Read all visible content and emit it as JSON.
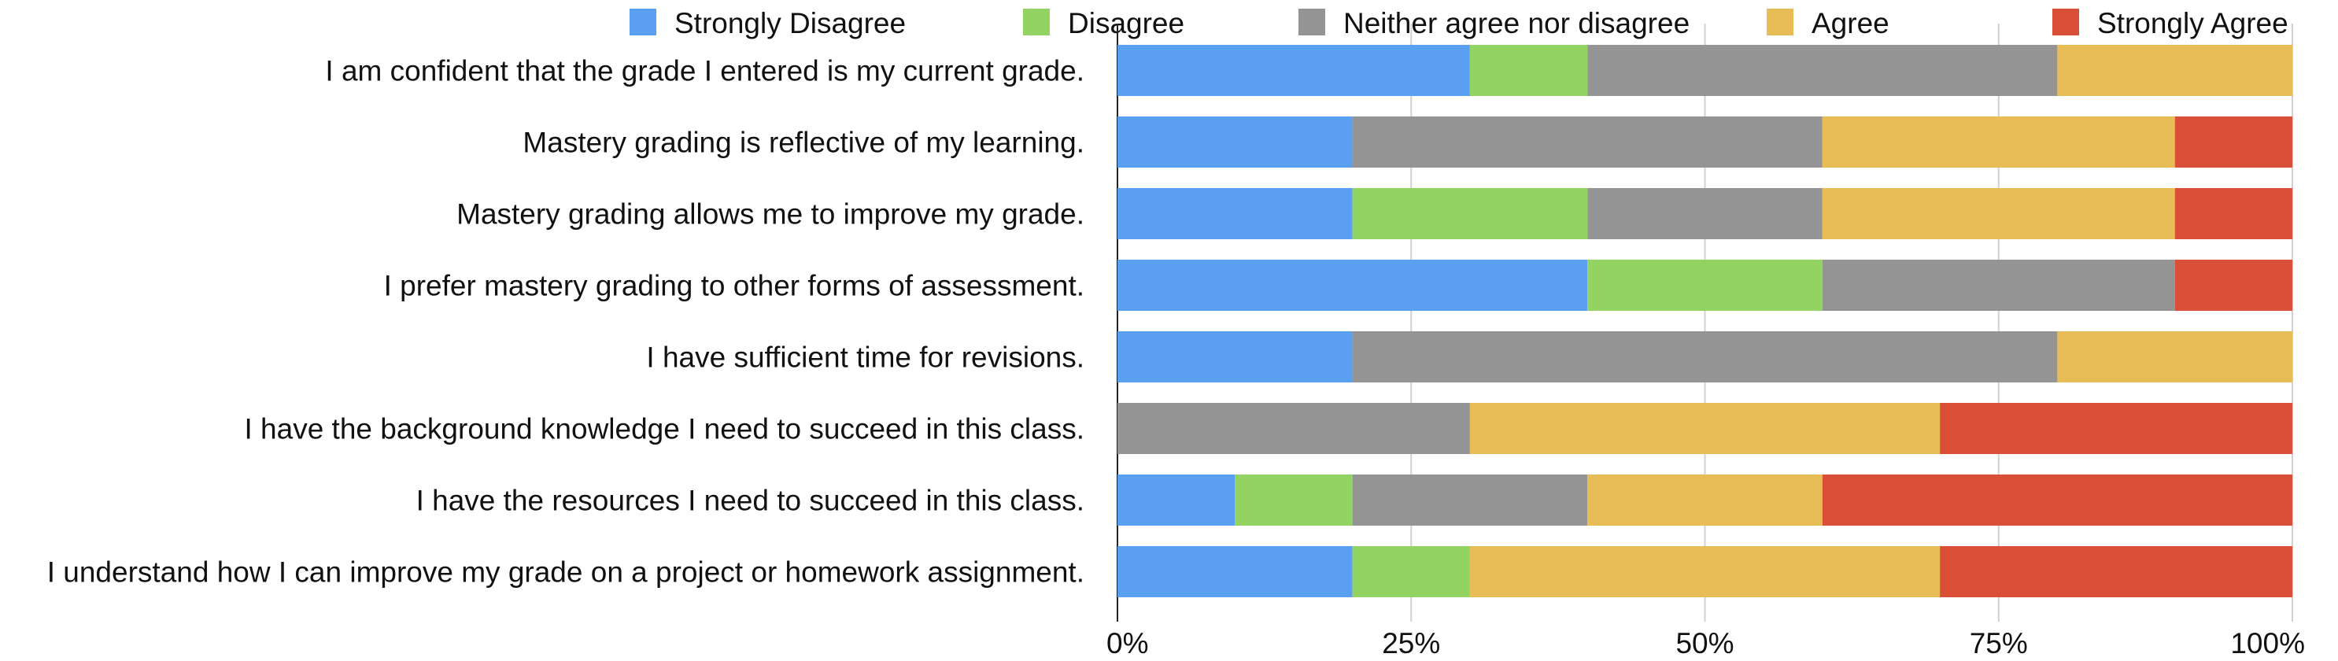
{
  "chart_data": {
    "type": "bar",
    "orientation": "horizontal",
    "stacked": "percent",
    "title": "",
    "xlabel": "",
    "ylabel": "",
    "xlim": [
      0,
      100
    ],
    "x_ticks": [
      "0%",
      "25%",
      "50%",
      "75%",
      "100%"
    ],
    "grid": true,
    "legend_position": "top",
    "categories": [
      "I am confident that the grade I entered is my current grade.",
      "Mastery grading is reflective of my learning.",
      "Mastery grading allows me to improve my grade.",
      "I prefer mastery grading to other forms of assessment.",
      "I have sufficient time for revisions.",
      "I have the background knowledge I need to succeed in this class.",
      "I have the resources I need to succeed in this class.",
      "I understand how I can improve my grade on a project or homework assignment."
    ],
    "series": [
      {
        "name": "Strongly Disagree",
        "color": "#5b9ff0",
        "values": [
          30,
          20,
          20,
          40,
          20,
          0,
          10,
          20
        ]
      },
      {
        "name": "Disagree",
        "color": "#93d362",
        "values": [
          10,
          0,
          20,
          20,
          0,
          0,
          10,
          10
        ]
      },
      {
        "name": "Neither agree nor disagree",
        "color": "#949494",
        "values": [
          40,
          40,
          20,
          30,
          60,
          30,
          20,
          0
        ]
      },
      {
        "name": "Agree",
        "color": "#e8bd58",
        "values": [
          20,
          30,
          30,
          0,
          20,
          40,
          20,
          40
        ]
      },
      {
        "name": "Strongly Agree",
        "color": "#d94f37",
        "values": [
          0,
          10,
          10,
          10,
          0,
          30,
          40,
          30
        ]
      }
    ]
  }
}
